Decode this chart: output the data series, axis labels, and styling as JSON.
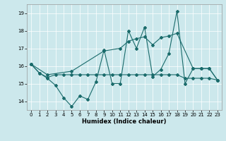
{
  "xlabel": "Humidex (Indice chaleur)",
  "ylabel": "",
  "xlim": [
    -0.5,
    23.5
  ],
  "ylim": [
    13.5,
    19.5
  ],
  "yticks": [
    14,
    15,
    16,
    17,
    18,
    19
  ],
  "xticks": [
    0,
    1,
    2,
    3,
    4,
    5,
    6,
    7,
    8,
    9,
    10,
    11,
    12,
    13,
    14,
    15,
    16,
    17,
    18,
    19,
    20,
    21,
    22,
    23
  ],
  "bg_color": "#cce8ec",
  "line_color": "#1a6b6b",
  "line1_x": [
    0,
    1,
    2,
    3,
    4,
    5,
    6,
    7,
    8,
    9,
    10,
    11,
    12,
    13,
    14,
    15,
    16,
    17,
    18,
    19,
    20,
    21,
    22,
    23
  ],
  "line1_y": [
    16.1,
    15.6,
    15.3,
    14.9,
    14.2,
    13.7,
    14.3,
    14.1,
    15.1,
    16.9,
    15.0,
    15.0,
    18.0,
    17.0,
    18.2,
    15.4,
    15.8,
    16.7,
    19.1,
    15.0,
    15.85,
    15.85,
    15.85,
    15.2
  ],
  "line2_x": [
    0,
    1,
    2,
    3,
    4,
    5,
    6,
    7,
    8,
    9,
    10,
    11,
    12,
    13,
    14,
    15,
    16,
    17,
    18,
    19,
    20,
    21,
    22,
    23
  ],
  "line2_y": [
    16.1,
    15.6,
    15.35,
    15.5,
    15.5,
    15.5,
    15.5,
    15.5,
    15.5,
    15.5,
    15.5,
    15.5,
    15.5,
    15.5,
    15.5,
    15.5,
    15.5,
    15.5,
    15.5,
    15.3,
    15.3,
    15.3,
    15.3,
    15.2
  ],
  "line3_x": [
    0,
    2,
    5,
    9,
    11,
    12,
    13,
    14,
    15,
    16,
    17,
    18,
    20,
    21,
    22,
    23
  ],
  "line3_y": [
    16.1,
    15.5,
    15.7,
    16.85,
    17.0,
    17.4,
    17.55,
    17.65,
    17.2,
    17.6,
    17.7,
    17.85,
    15.85,
    15.85,
    15.85,
    15.2
  ]
}
